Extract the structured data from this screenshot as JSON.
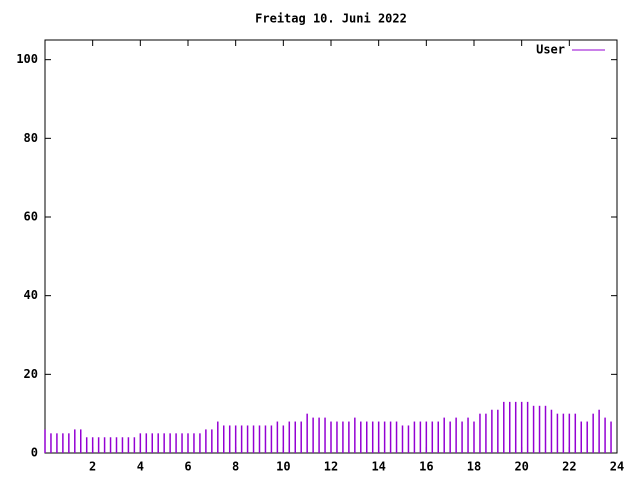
{
  "chart_data": {
    "type": "impulse",
    "title": "Freitag 10. Juni 2022",
    "x": [
      0,
      0.25,
      0.5,
      0.75,
      1,
      1.25,
      1.5,
      1.75,
      2,
      2.25,
      2.5,
      2.75,
      3,
      3.25,
      3.5,
      3.75,
      4,
      4.25,
      4.5,
      4.75,
      5,
      5.25,
      5.5,
      5.75,
      6,
      6.25,
      6.5,
      6.75,
      7,
      7.25,
      7.5,
      7.75,
      8,
      8.25,
      8.5,
      8.75,
      9,
      9.25,
      9.5,
      9.75,
      10,
      10.25,
      10.5,
      10.75,
      11,
      11.25,
      11.5,
      11.75,
      12,
      12.25,
      12.5,
      12.75,
      13,
      13.25,
      13.5,
      13.75,
      14,
      14.25,
      14.5,
      14.75,
      15,
      15.25,
      15.5,
      15.75,
      16,
      16.25,
      16.5,
      16.75,
      17,
      17.25,
      17.5,
      17.75,
      18,
      18.25,
      18.5,
      18.75,
      19,
      19.25,
      19.5,
      19.75,
      20,
      20.25,
      20.5,
      20.75,
      21,
      21.25,
      21.5,
      21.75,
      22,
      22.25,
      22.5,
      22.75,
      23,
      23.25,
      23.5,
      23.75
    ],
    "series": [
      {
        "name": "User",
        "color": "#9400d3",
        "values": [
          6,
          5,
          5,
          5,
          5,
          6,
          6,
          4,
          4,
          4,
          4,
          4,
          4,
          4,
          4,
          4,
          5,
          5,
          5,
          5,
          5,
          5,
          5,
          5,
          5,
          5,
          5,
          6,
          6,
          8,
          7,
          7,
          7,
          7,
          7,
          7,
          7,
          7,
          7,
          8,
          7,
          8,
          8,
          8,
          10,
          9,
          9,
          9,
          8,
          8,
          8,
          8,
          9,
          8,
          8,
          8,
          8,
          8,
          8,
          8,
          7,
          7,
          8,
          8,
          8,
          8,
          8,
          9,
          8,
          9,
          8,
          9,
          8,
          10,
          10,
          11,
          11,
          13,
          13,
          13,
          13,
          13,
          12,
          12,
          12,
          11,
          10,
          10,
          10,
          10,
          8,
          8,
          10,
          11,
          9,
          8
        ]
      }
    ],
    "xlim": [
      0,
      24
    ],
    "xticks": [
      2,
      4,
      6,
      8,
      10,
      12,
      14,
      16,
      18,
      20,
      22,
      24
    ],
    "ylim": [
      0,
      105
    ],
    "yticks": [
      0,
      20,
      40,
      60,
      80,
      100
    ],
    "legend": "upper right"
  }
}
